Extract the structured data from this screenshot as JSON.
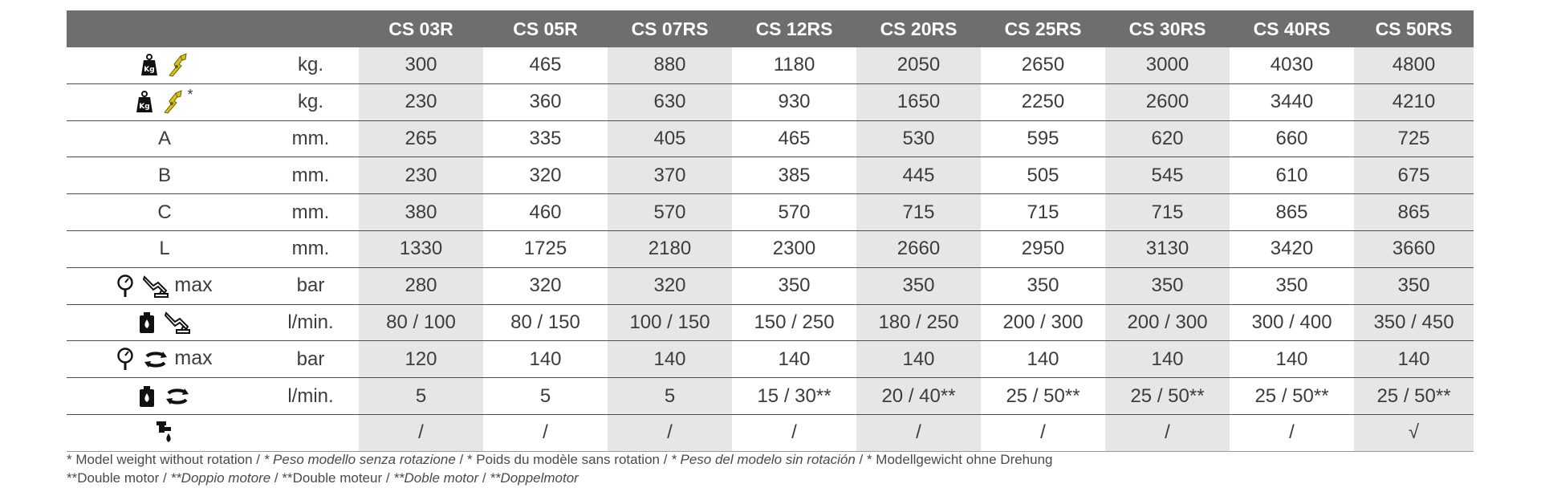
{
  "columns": [
    "CS 03R",
    "CS 05R",
    "CS 07RS",
    "CS 12RS",
    "CS 20RS",
    "CS 25RS",
    "CS 30RS",
    "CS 40RS",
    "CS 50RS"
  ],
  "rows": [
    {
      "label": "",
      "icons": [
        "weight-icon",
        "shears-icon"
      ],
      "star": "",
      "max": "",
      "unit": "kg.",
      "values": [
        "300",
        "465",
        "880",
        "1180",
        "2050",
        "2650",
        "3000",
        "4030",
        "4800"
      ]
    },
    {
      "label": "",
      "icons": [
        "weight-icon",
        "shears-icon"
      ],
      "star": "*",
      "max": "",
      "unit": "kg.",
      "values": [
        "230",
        "360",
        "630",
        "930",
        "1650",
        "2250",
        "2600",
        "3440",
        "4210"
      ]
    },
    {
      "label": "A",
      "icons": [],
      "star": "",
      "max": "",
      "unit": "mm.",
      "values": [
        "265",
        "335",
        "405",
        "465",
        "530",
        "595",
        "620",
        "660",
        "725"
      ]
    },
    {
      "label": "B",
      "icons": [],
      "star": "",
      "max": "",
      "unit": "mm.",
      "values": [
        "230",
        "320",
        "370",
        "385",
        "445",
        "505",
        "545",
        "610",
        "675"
      ]
    },
    {
      "label": "C",
      "icons": [],
      "star": "",
      "max": "",
      "unit": "mm.",
      "values": [
        "380",
        "460",
        "570",
        "570",
        "715",
        "715",
        "715",
        "865",
        "865"
      ]
    },
    {
      "label": "L",
      "icons": [],
      "star": "",
      "max": "",
      "unit": "mm.",
      "values": [
        "1330",
        "1725",
        "2180",
        "2300",
        "2660",
        "2950",
        "3130",
        "3420",
        "3660"
      ]
    },
    {
      "label": "",
      "icons": [
        "pressure-gauge-icon",
        "excavator-arm-icon"
      ],
      "star": "",
      "max": "max",
      "unit": "bar",
      "values": [
        "280",
        "320",
        "320",
        "350",
        "350",
        "350",
        "350",
        "350",
        "350"
      ]
    },
    {
      "label": "",
      "icons": [
        "oil-tank-icon",
        "excavator-arm-icon"
      ],
      "star": "",
      "max": "",
      "unit": "l/min.",
      "values": [
        "80 / 100",
        "80 / 150",
        "100 / 150",
        "150 / 250",
        "180 / 250",
        "200 / 300",
        "200 / 300",
        "300 / 400",
        "350 / 450"
      ]
    },
    {
      "label": "",
      "icons": [
        "pressure-gauge-icon",
        "rotation-icon"
      ],
      "star": "",
      "max": "max",
      "unit": "bar",
      "values": [
        "120",
        "140",
        "140",
        "140",
        "140",
        "140",
        "140",
        "140",
        "140"
      ]
    },
    {
      "label": "",
      "icons": [
        "oil-tank-icon",
        "rotation-icon"
      ],
      "star": "",
      "max": "",
      "unit": "l/min.",
      "values": [
        "5",
        "5",
        "5",
        "15 / 30**",
        "20 / 40**",
        "25 / 50**",
        "25 / 50**",
        "25 / 50**",
        "25 / 50**"
      ]
    },
    {
      "label": "",
      "icons": [
        "water-tap-icon"
      ],
      "star": "",
      "max": "",
      "unit": "",
      "values": [
        "/",
        "/",
        "/",
        "/",
        "/",
        "/",
        "/",
        "/",
        "√"
      ]
    }
  ],
  "footnotes": {
    "line1": [
      {
        "text": "* Model weight without rotation /  ",
        "italic": false
      },
      {
        "text": "* Peso modello senza rotazione",
        "italic": true
      },
      {
        "text": " / * Poids du modèle sans rotation /  ",
        "italic": false
      },
      {
        "text": "* Peso del modelo sin rotación",
        "italic": true
      },
      {
        "text": " / * Modellgewicht ohne Drehung",
        "italic": false
      }
    ],
    "line2": [
      {
        "text": "**Double motor / ",
        "italic": false
      },
      {
        "text": "**Doppio motore",
        "italic": true
      },
      {
        "text": " / **Double moteur / ",
        "italic": false
      },
      {
        "text": "**Doble motor",
        "italic": true
      },
      {
        "text": " / ",
        "italic": false
      },
      {
        "text": "**Doppelmotor",
        "italic": true
      }
    ]
  },
  "colors": {
    "header_bg": "#6d6e70",
    "shade": "#e6e6e6",
    "icon_yellow": "#d8c21a"
  }
}
